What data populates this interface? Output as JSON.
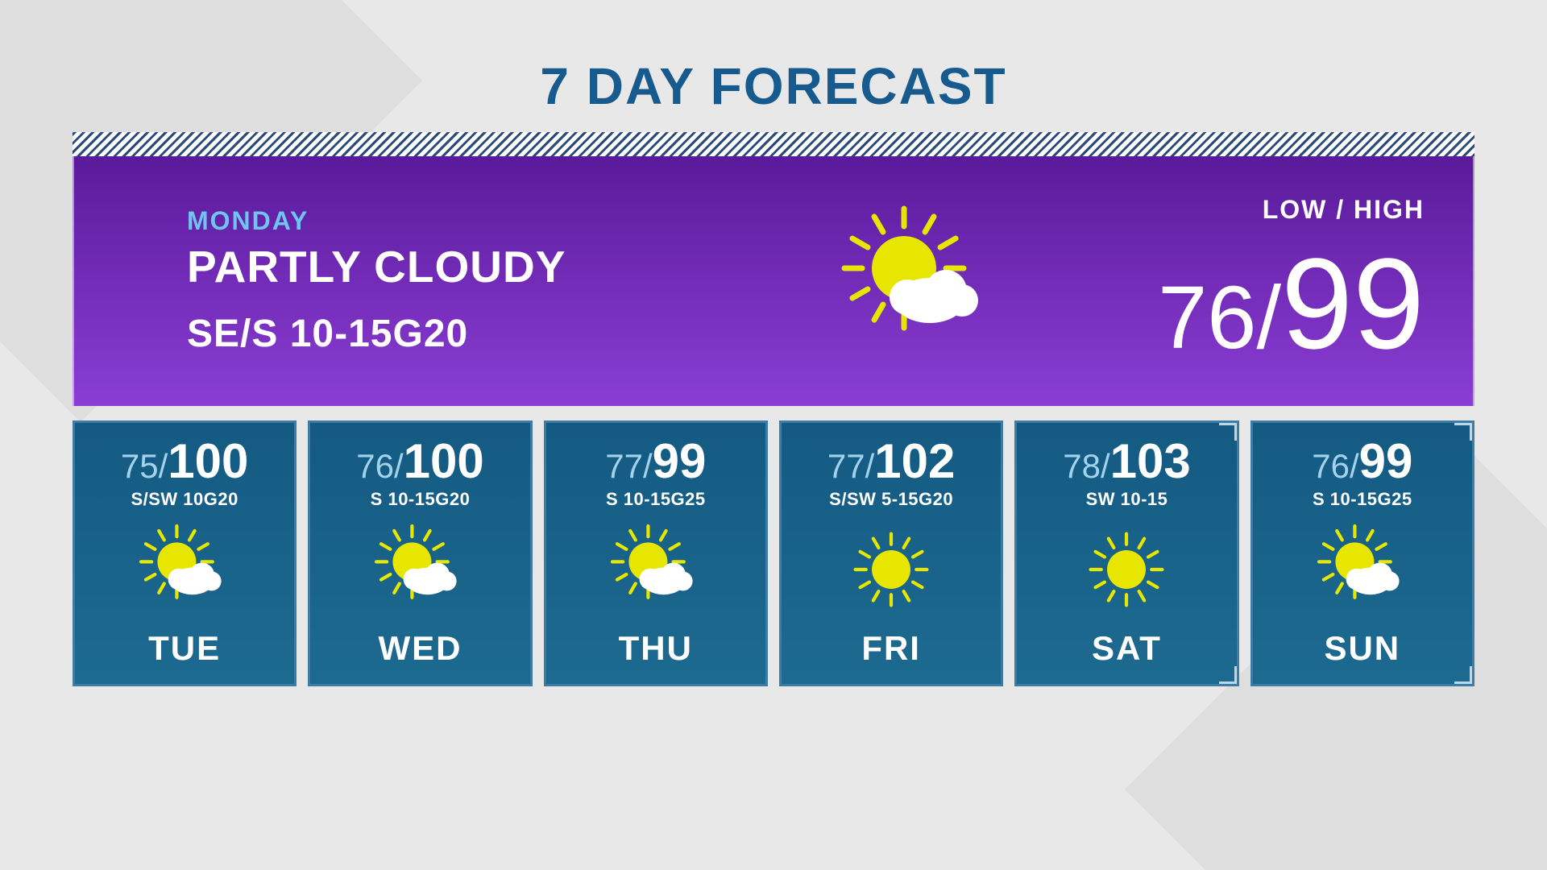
{
  "title": "7 DAY FORECAST",
  "colors": {
    "page_bg": "#e8e8e8",
    "title_color": "#165a8e",
    "hero_gradient_top": "#5a1a9a",
    "hero_gradient_bottom": "#8a3dd4",
    "hero_day_color": "#6fc4f0",
    "hero_text_color": "#ffffff",
    "day_card_bg_top": "#145a82",
    "day_card_bg_bottom": "#1d6a90",
    "day_card_border": "#3d7da5",
    "day_low_color": "#a3d2ec",
    "sun_color": "#e6e600",
    "cloud_color": "#ffffff"
  },
  "hero": {
    "day": "MONDAY",
    "condition": "PARTLY CLOUDY",
    "wind": "SE/S 10-15G20",
    "low_high_label": "LOW / HIGH",
    "low": "76",
    "slash": "/",
    "high": "99",
    "icon": "partly_cloudy"
  },
  "days": [
    {
      "name": "TUE",
      "low": "75",
      "high": "100",
      "wind": "S/SW 10G20",
      "icon": "partly_cloudy",
      "highlight": false
    },
    {
      "name": "WED",
      "low": "76",
      "high": "100",
      "wind": "S 10-15G20",
      "icon": "partly_cloudy",
      "highlight": false
    },
    {
      "name": "THU",
      "low": "77",
      "high": "99",
      "wind": "S 10-15G25",
      "icon": "partly_cloudy",
      "highlight": false
    },
    {
      "name": "FRI",
      "low": "77",
      "high": "102",
      "wind": "S/SW 5-15G20",
      "icon": "sunny",
      "highlight": false
    },
    {
      "name": "SAT",
      "low": "78",
      "high": "103",
      "wind": "SW 10-15",
      "icon": "sunny",
      "highlight": true
    },
    {
      "name": "SUN",
      "low": "76",
      "high": "99",
      "wind": "S 10-15G25",
      "icon": "partly_cloudy",
      "highlight": true
    }
  ],
  "icon_sizes": {
    "hero": 200,
    "day": 120
  },
  "typography": {
    "title_fontsize": 64,
    "hero_day_fontsize": 32,
    "hero_cond_fontsize": 55,
    "hero_wind_fontsize": 48,
    "hero_low_fontsize": 110,
    "hero_high_fontsize": 160,
    "day_low_fontsize": 42,
    "day_high_fontsize": 60,
    "day_wind_fontsize": 22,
    "day_name_fontsize": 42
  }
}
